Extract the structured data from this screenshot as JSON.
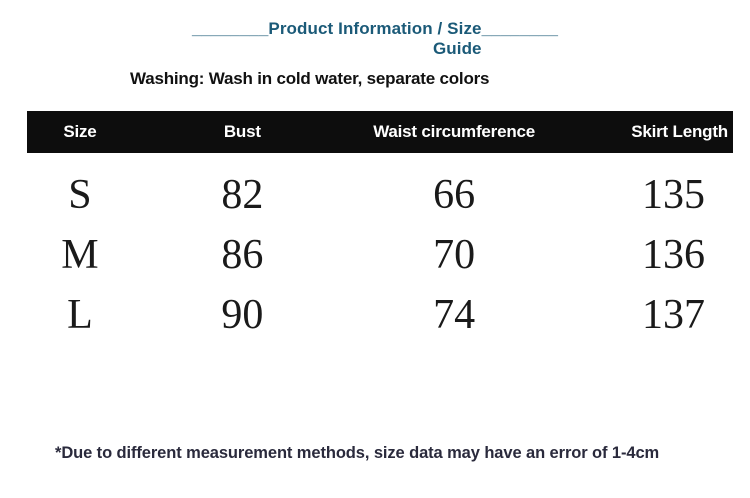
{
  "header": {
    "underscore_left": "________",
    "underscore_right": "________",
    "title_line1": "Product Information / Size",
    "title_line2": "Guide",
    "washing_note": "Washing: Wash in cold water, separate colors"
  },
  "table": {
    "columns": {
      "size": "Size",
      "bust": "Bust",
      "waist": "Waist circumference",
      "skirt_length": "Skirt Length"
    },
    "rows": [
      {
        "size": "S",
        "bust": "82",
        "waist": "66",
        "skirt_length": "135"
      },
      {
        "size": "M",
        "bust": "86",
        "waist": "70",
        "skirt_length": "136"
      },
      {
        "size": "L",
        "bust": "90",
        "waist": "74",
        "skirt_length": "137"
      }
    ]
  },
  "footnote": "*Due to different measurement methods, size data may have an error of 1-4cm",
  "colors": {
    "title_text": "#1b5a78",
    "header_bar_bg": "#0d0d0d",
    "header_bar_text": "#ffffff",
    "body_text": "#1a1a1a",
    "footnote_text": "#2a2a3c"
  }
}
